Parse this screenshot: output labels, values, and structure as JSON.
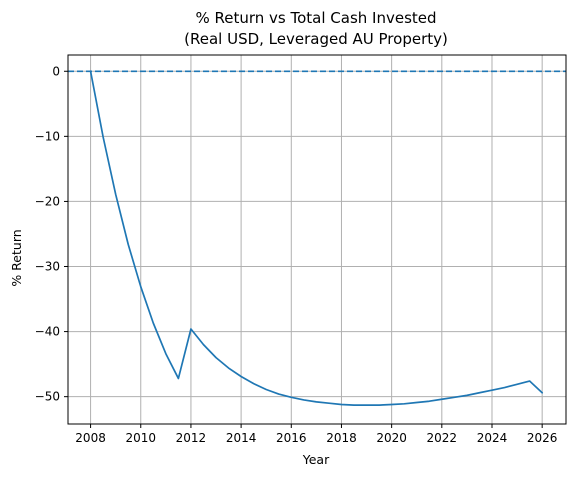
{
  "chart_data": {
    "type": "line",
    "title": "% Return vs Total Cash Invested\n(Real USD, Leveraged AU Property)",
    "xlabel": "Year",
    "ylabel": "% Return",
    "xlim": [
      2007.1,
      2026.95
    ],
    "ylim": [
      -54.2,
      2.5
    ],
    "x_ticks": [
      2008,
      2010,
      2012,
      2014,
      2016,
      2018,
      2020,
      2022,
      2024,
      2026
    ],
    "y_ticks": [
      0,
      -10,
      -20,
      -30,
      -40,
      -50
    ],
    "grid": true,
    "colors": {
      "line": "#1f77b4",
      "grid": "#b0b0b0",
      "axis": "#000000"
    },
    "series": [
      {
        "name": "",
        "style": "solid",
        "x": [
          2008,
          2008.5,
          2009,
          2009.5,
          2010,
          2010.5,
          2011,
          2011.5,
          2012,
          2012.5,
          2013,
          2013.5,
          2014,
          2014.5,
          2015,
          2015.5,
          2016,
          2016.5,
          2017,
          2017.5,
          2018,
          2018.5,
          2019,
          2019.5,
          2020,
          2020.5,
          2021,
          2021.5,
          2022,
          2022.5,
          2023,
          2023.5,
          2024,
          2024.5,
          2025,
          2025.5,
          2026
        ],
        "y": [
          0,
          -10.1,
          -18.9,
          -26.6,
          -33.1,
          -38.7,
          -43.4,
          -47.2,
          -39.6,
          -42.0,
          -44.0,
          -45.6,
          -46.9,
          -48.0,
          -48.9,
          -49.6,
          -50.1,
          -50.5,
          -50.8,
          -51.0,
          -51.2,
          -51.3,
          -51.3,
          -51.3,
          -51.2,
          -51.1,
          -50.9,
          -50.7,
          -50.4,
          -50.1,
          -49.8,
          -49.4,
          -49.0,
          -48.6,
          -48.1,
          -47.6,
          -49.4
        ]
      },
      {
        "name": "",
        "style": "dashed",
        "y_constant": 0
      }
    ]
  }
}
